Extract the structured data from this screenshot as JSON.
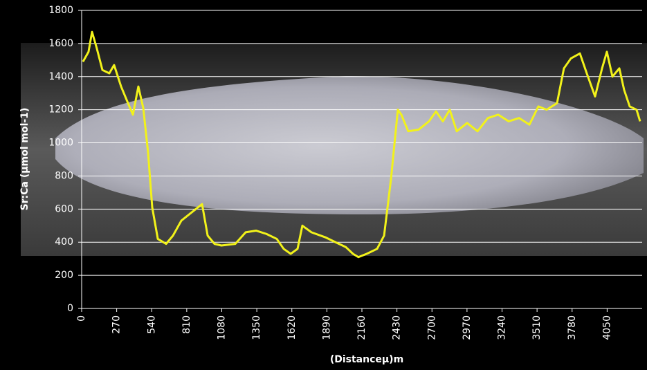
{
  "chart_data": {
    "type": "line",
    "y_label": "Sr:Ca (µmol mol-1)",
    "x_label": "(Distanceµ)m",
    "x": [
      10,
      53,
      80,
      117,
      160,
      213,
      250,
      304,
      357,
      395,
      437,
      475,
      512,
      544,
      587,
      651,
      704,
      768,
      864,
      928,
      971,
      1024,
      1077,
      1184,
      1264,
      1344,
      1424,
      1504,
      1557,
      1611,
      1664,
      1701,
      1771,
      1877,
      1957,
      2037,
      2091,
      2133,
      2197,
      2277,
      2331,
      2384,
      2437,
      2464,
      2517,
      2597,
      2677,
      2731,
      2784,
      2837,
      2891,
      2971,
      3051,
      3131,
      3211,
      3291,
      3371,
      3451,
      3520,
      3584,
      3664,
      3717,
      3771,
      3840,
      3893,
      3957,
      4011,
      4048,
      4091,
      4144,
      4181,
      4224,
      4277,
      4304
    ],
    "series": [
      {
        "color": "#f2f21a",
        "values": [
          1490,
          1550,
          1670,
          1570,
          1440,
          1420,
          1470,
          1340,
          1240,
          1170,
          1340,
          1210,
          940,
          610,
          420,
          390,
          440,
          530,
          590,
          630,
          440,
          390,
          380,
          390,
          460,
          470,
          450,
          420,
          360,
          330,
          360,
          500,
          460,
          430,
          400,
          370,
          330,
          310,
          330,
          360,
          440,
          780,
          1200,
          1170,
          1070,
          1080,
          1130,
          1190,
          1130,
          1200,
          1070,
          1120,
          1070,
          1150,
          1170,
          1130,
          1150,
          1110,
          1220,
          1200,
          1240,
          1450,
          1510,
          1540,
          1420,
          1280,
          1450,
          1550,
          1400,
          1450,
          1320,
          1220,
          1200,
          1130
        ]
      }
    ],
    "xlim": [
      0,
      4320
    ],
    "xticks": [
      0,
      270,
      540,
      810,
      1080,
      1350,
      1620,
      1890,
      2160,
      2430,
      2700,
      2970,
      3240,
      3510,
      3780,
      4050
    ],
    "ylim": [
      0,
      1800
    ],
    "yticks": [
      0,
      200,
      400,
      600,
      800,
      1000,
      1200,
      1400,
      1600,
      1800
    ],
    "grid": true
  }
}
